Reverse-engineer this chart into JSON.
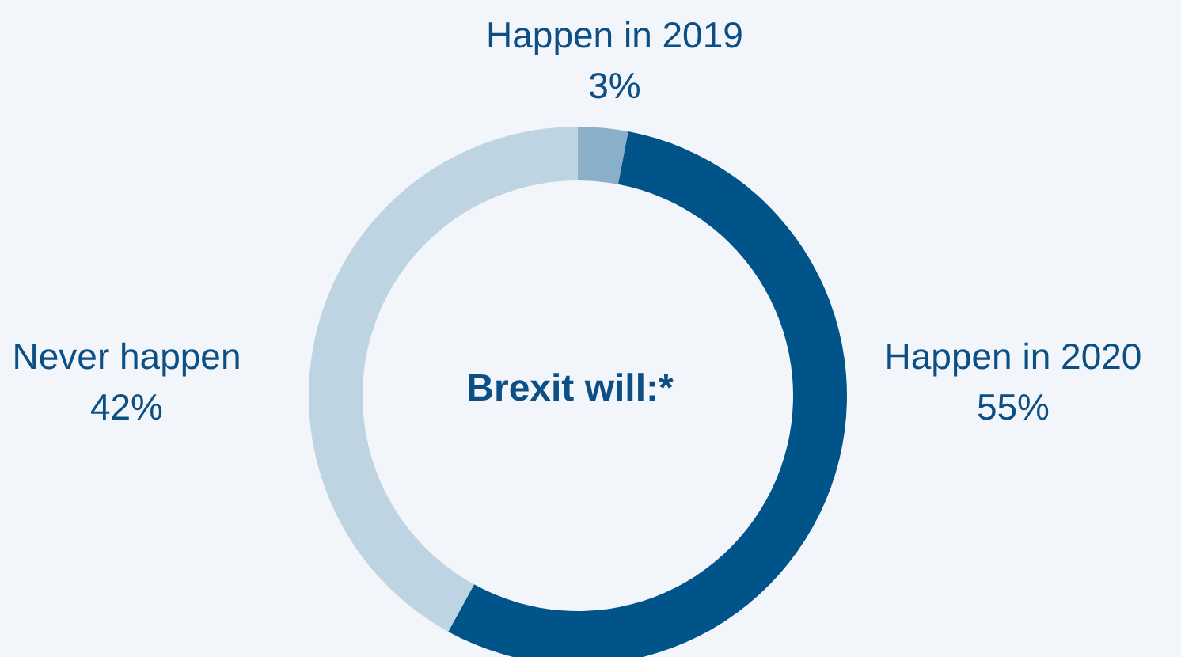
{
  "chart_data": {
    "type": "donut",
    "title": "Brexit will:*",
    "categories": [
      "Happen in 2019",
      "Happen in 2020",
      "Never happen"
    ],
    "values": [
      3,
      55,
      42
    ],
    "colors": [
      "#8aafc9",
      "#00548a",
      "#bed4e2"
    ],
    "value_labels": [
      "3%",
      "55%",
      "42%"
    ]
  }
}
